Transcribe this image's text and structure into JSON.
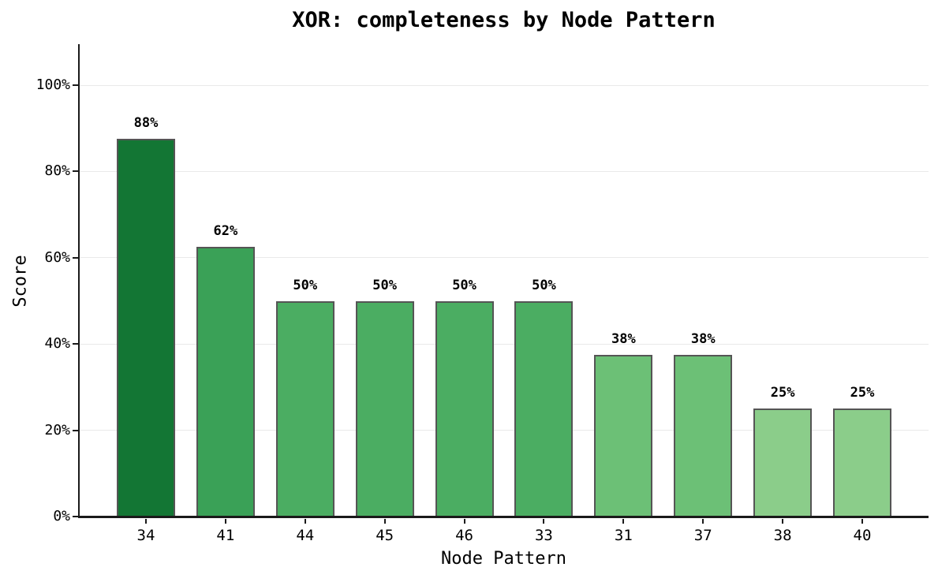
{
  "chart_data": {
    "type": "bar",
    "title": "XOR: completeness by Node Pattern",
    "xlabel": "Node Pattern",
    "ylabel": "Score",
    "categories": [
      "34",
      "41",
      "44",
      "45",
      "46",
      "33",
      "31",
      "37",
      "38",
      "40"
    ],
    "values": [
      87.5,
      62.5,
      50,
      50,
      50,
      50,
      37.5,
      37.5,
      25,
      25
    ],
    "value_labels": [
      "88%",
      "62%",
      "50%",
      "50%",
      "50%",
      "50%",
      "38%",
      "38%",
      "25%",
      "25%"
    ],
    "bar_colors": [
      "#137634",
      "#3aa157",
      "#4bad62",
      "#4bad62",
      "#4bad62",
      "#4bad62",
      "#6cc076",
      "#6cc076",
      "#8bcd8a",
      "#8bcd8a"
    ],
    "bar_edge_color": "#555555",
    "ytick_values": [
      0,
      20,
      40,
      60,
      80,
      100
    ],
    "ytick_labels": [
      "0%",
      "20%",
      "40%",
      "60%",
      "80%",
      "100%"
    ],
    "ylim": [
      0,
      109.3
    ],
    "grid": true,
    "gridline_color": "#e9e9e9",
    "axis_color": "#1a1a1a",
    "background_color": "#ffffff",
    "legend": null
  }
}
